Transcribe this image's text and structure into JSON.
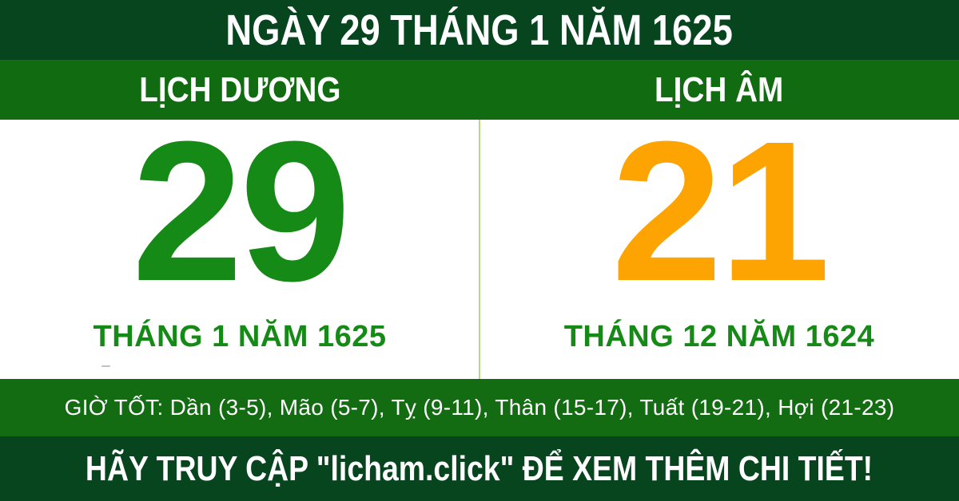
{
  "title_bar": {
    "text": "NGÀY 29 THÁNG 1 NĂM 1625"
  },
  "calendar": {
    "solar": {
      "header": "LỊCH DƯƠNG",
      "day": "29",
      "month_year": "THÁNG 1 NĂM 1625"
    },
    "lunar": {
      "header": "LỊCH ÂM",
      "day": "21",
      "month_year": "THÁNG 12 NĂM 1624"
    }
  },
  "good_hours": {
    "text": "GIỜ TỐT: Dần (3-5), Mão (5-7), Tỵ (9-11), Thân (15-17), Tuất (19-21), Hợi (21-23)"
  },
  "footer": {
    "text": "HÃY TRUY CẬP \"licham.click\" ĐỂ XEM THÊM CHI TIẾT!"
  },
  "colors": {
    "dark_green": "#07451f",
    "bar_green": "#116b11",
    "hours_green": "#136c12",
    "day_green": "#168a16",
    "day_orange": "#fda402",
    "divider_green": "#b5d98a",
    "text_white": "#ffffff"
  }
}
